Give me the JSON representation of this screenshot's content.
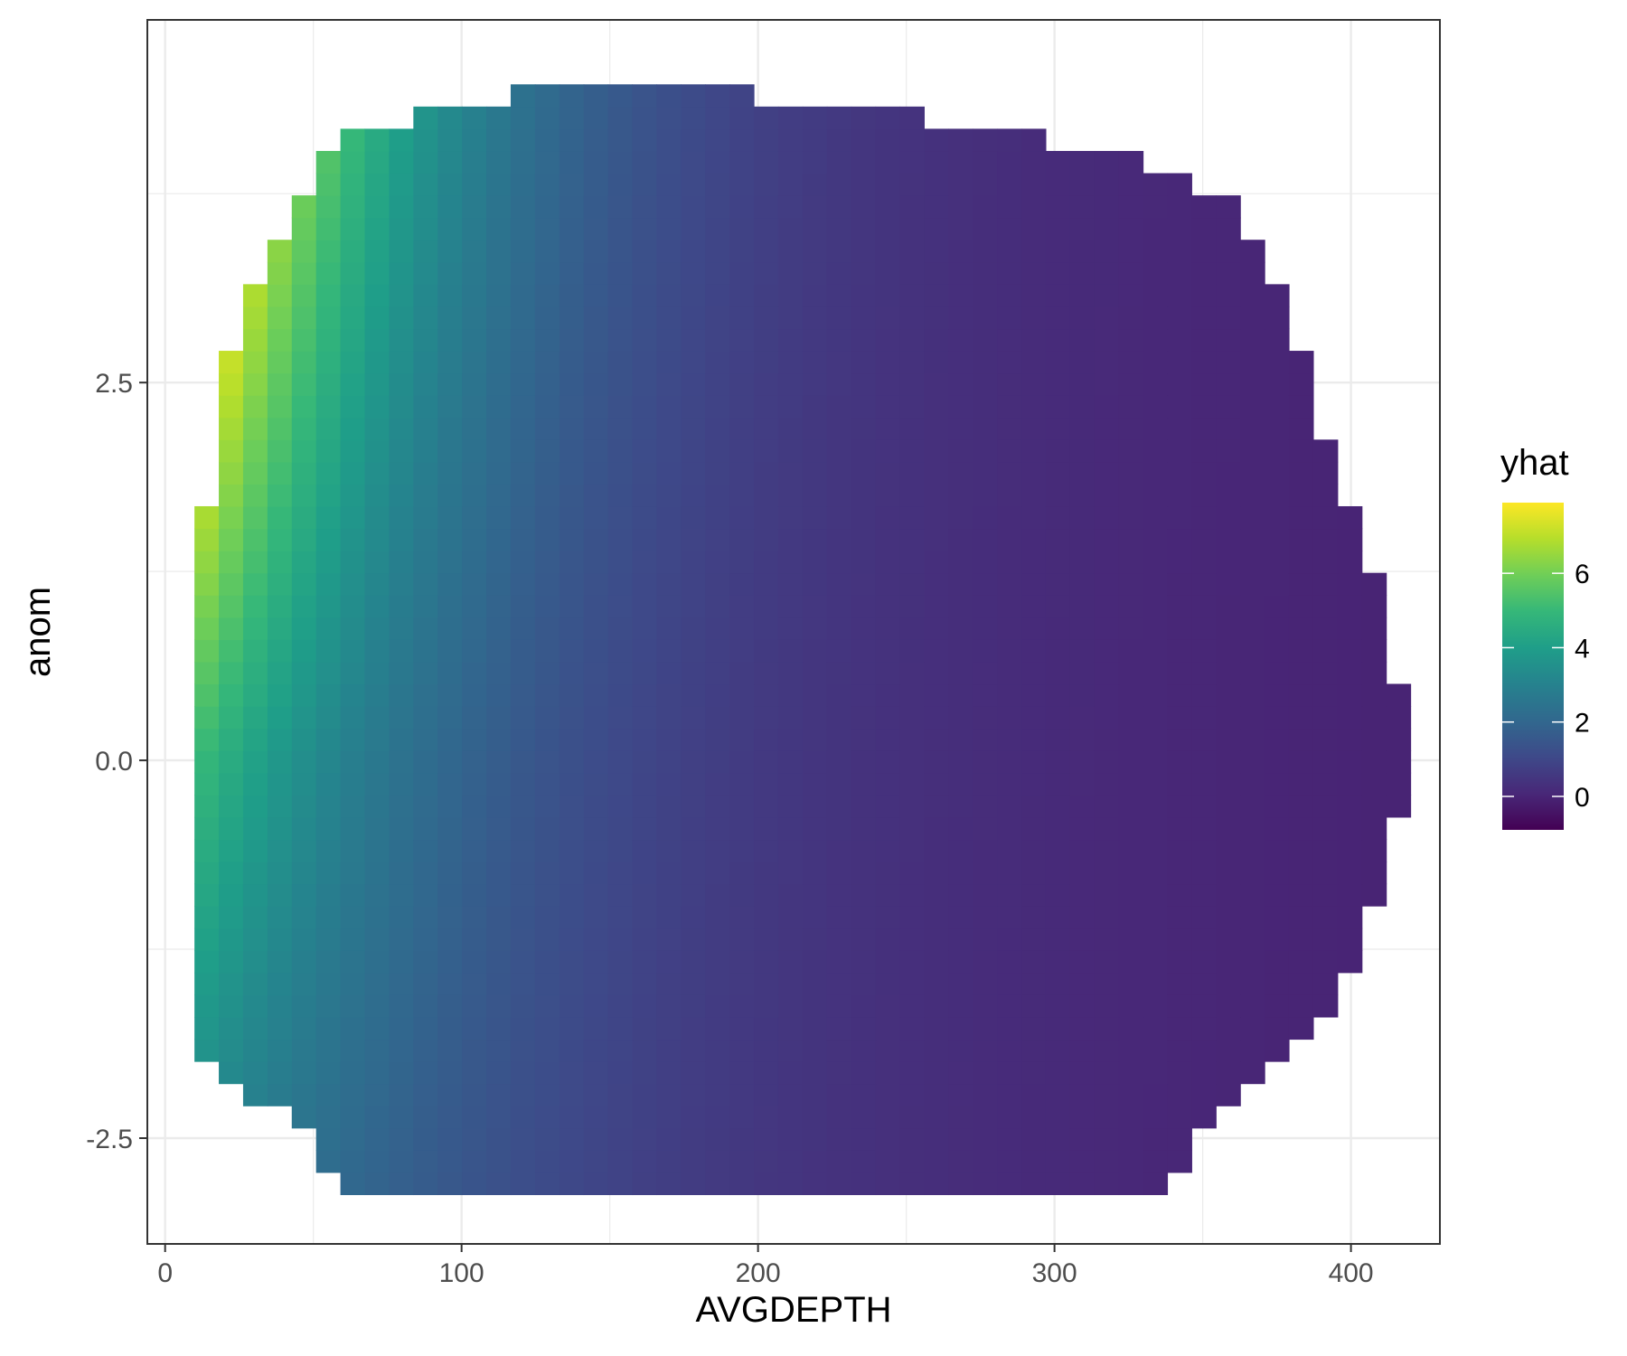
{
  "chart_data": {
    "type": "heatmap",
    "title": "",
    "xlabel": "AVGDEPTH",
    "ylabel": "anom",
    "xlim": [
      -6,
      430
    ],
    "ylim": [
      -3.2,
      4.9
    ],
    "x_ticks": [
      {
        "value": 0,
        "label": "0"
      },
      {
        "value": 100,
        "label": "100"
      },
      {
        "value": 200,
        "label": "200"
      },
      {
        "value": 300,
        "label": "300"
      },
      {
        "value": 400,
        "label": "400"
      }
    ],
    "y_ticks": [
      {
        "value": -2.5,
        "label": "-2.5"
      },
      {
        "value": 0,
        "label": "0.0"
      },
      {
        "value": 2.5,
        "label": "2.5"
      }
    ],
    "grid": true,
    "colormap": "viridis",
    "colorbar": {
      "title": "yhat",
      "min": -0.9,
      "max": 7.9,
      "ticks": [
        {
          "value": 0,
          "label": "0"
        },
        {
          "value": 2,
          "label": "2"
        },
        {
          "value": 4,
          "label": "4"
        },
        {
          "value": 6,
          "label": "6"
        }
      ],
      "position": "right"
    },
    "grid_x": {
      "min": 14,
      "max": 416,
      "n": 50
    },
    "grid_y": {
      "min": -2.8,
      "max": 4.4,
      "n": 50
    },
    "row_extents": [
      {
        "y": -2.8,
        "x_min": 64,
        "x_max": 334
      },
      {
        "y": -2.6,
        "x_min": 56,
        "x_max": 342
      },
      {
        "y": -2.4,
        "x_min": 48,
        "x_max": 350
      },
      {
        "y": -2.25,
        "x_min": 31,
        "x_max": 358
      },
      {
        "y": -2.1,
        "x_min": 23,
        "x_max": 366
      },
      {
        "y": -1.9,
        "x_min": 14,
        "x_max": 374
      },
      {
        "y": -1.7,
        "x_min": 14,
        "x_max": 383
      },
      {
        "y": -1.6,
        "x_min": 14,
        "x_max": 391
      },
      {
        "y": -1.2,
        "x_min": 14,
        "x_max": 399
      },
      {
        "y": -0.7,
        "x_min": 14,
        "x_max": 407
      },
      {
        "y": 0.0,
        "x_min": 14,
        "x_max": 416
      },
      {
        "y": 1.0,
        "x_min": 14,
        "x_max": 407
      },
      {
        "y": 1.5,
        "x_min": 14,
        "x_max": 399
      },
      {
        "y": 2.0,
        "x_min": 23,
        "x_max": 391
      },
      {
        "y": 2.4,
        "x_min": 23,
        "x_max": 383
      },
      {
        "y": 3.0,
        "x_min": 31,
        "x_max": 374
      },
      {
        "y": 3.3,
        "x_min": 39,
        "x_max": 366
      },
      {
        "y": 3.7,
        "x_min": 48,
        "x_max": 358
      },
      {
        "y": 4.0,
        "x_min": 56,
        "x_max": 325
      },
      {
        "y": 4.15,
        "x_min": 64,
        "x_max": 284
      },
      {
        "y": 4.3,
        "x_min": 97,
        "x_max": 243
      },
      {
        "y": 4.4,
        "x_min": 121,
        "x_max": 194
      }
    ],
    "model": {
      "description_of_fill": "yhat increases toward shallow depth and higher anom",
      "anchor_points": [
        {
          "x": 14,
          "y": 2.5,
          "yhat": 7.9
        },
        {
          "x": 14,
          "y": 0.0,
          "yhat": 5.0
        },
        {
          "x": 14,
          "y": -1.9,
          "yhat": 3.7
        },
        {
          "x": 100,
          "y": 0.0,
          "yhat": 3.3
        },
        {
          "x": 200,
          "y": 0.0,
          "yhat": 0.8
        },
        {
          "x": 300,
          "y": 0.0,
          "yhat": -0.3
        },
        {
          "x": 410,
          "y": 0.0,
          "yhat": -0.9
        }
      ]
    }
  }
}
